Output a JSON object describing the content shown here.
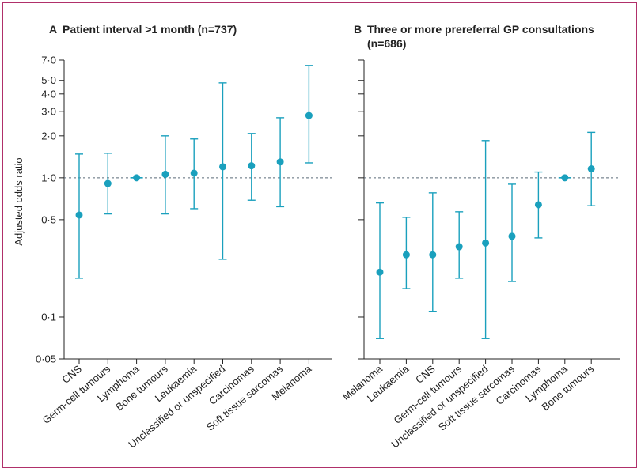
{
  "chart_data": [
    {
      "type": "scatter",
      "panel_letter": "A",
      "title": "Patient interval >1 month (n=737)",
      "ylabel": "Adjusted odds ratio",
      "yscale": "log",
      "ylim": [
        0.05,
        7.0
      ],
      "yticks": [
        0.05,
        0.1,
        0.5,
        1.0,
        2.0,
        3.0,
        4.0,
        5.0,
        7.0
      ],
      "ytick_labels": [
        "0·05",
        "0·1",
        "0·5",
        "1·0",
        "2·0",
        "3·0",
        "4·0",
        "5·0",
        "7·0"
      ],
      "reference_line": 1.0,
      "categories": [
        "CNS",
        "Germ-cell tumours",
        "Lymphoma",
        "Bone tumours",
        "Leukaemia",
        "Unclassified or unspecified",
        "Carcinomas",
        "Soft tissue sarcomas",
        "Melanoma"
      ],
      "values": [
        0.54,
        0.91,
        1.0,
        1.06,
        1.08,
        1.2,
        1.22,
        1.3,
        2.8
      ],
      "ci_low": [
        0.19,
        0.55,
        null,
        0.55,
        0.6,
        0.26,
        0.69,
        0.62,
        1.28
      ],
      "ci_high": [
        1.48,
        1.5,
        null,
        2.0,
        1.9,
        4.8,
        2.08,
        2.7,
        6.4
      ]
    },
    {
      "type": "scatter",
      "panel_letter": "B",
      "title": "Three or more prereferral GP consultations (n=686)",
      "ylabel": "",
      "yscale": "log",
      "ylim": [
        0.05,
        7.0
      ],
      "reference_line": 1.0,
      "categories": [
        "Melanoma",
        "Leukaemia",
        "CNS",
        "Germ-cell tumours",
        "Unclassified or unspecified",
        "Soft tissue sarcomas",
        "Carcinomas",
        "Lymphoma",
        "Bone tumours"
      ],
      "values": [
        0.21,
        0.28,
        0.28,
        0.32,
        0.34,
        0.38,
        0.64,
        1.0,
        1.16
      ],
      "ci_low": [
        0.07,
        0.16,
        0.11,
        0.19,
        0.07,
        0.18,
        0.37,
        null,
        0.63
      ],
      "ci_high": [
        0.66,
        0.52,
        0.78,
        0.57,
        1.85,
        0.9,
        1.1,
        null,
        2.12
      ]
    }
  ],
  "colors": {
    "marker": "#1aa0bd",
    "reference_line": "#5a6a78",
    "axis": "#222222",
    "frame": "#b0306a"
  }
}
